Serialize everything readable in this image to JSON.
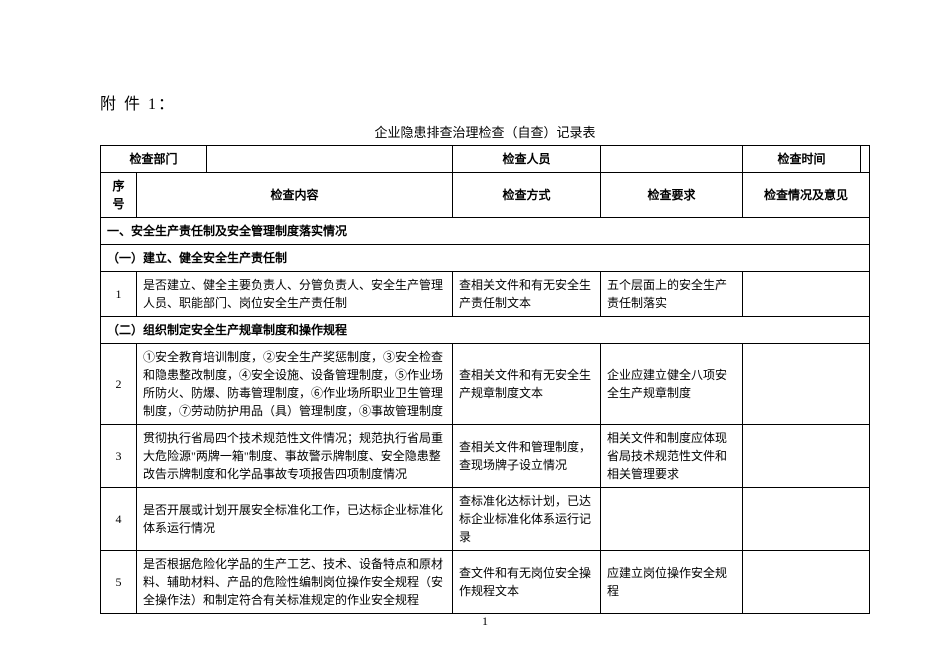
{
  "attachment_label": "附 件 1：",
  "title": "企业隐患排查治理检查（自查）记录表",
  "header_row": {
    "dept_label": "检查部门",
    "dept_value": "",
    "person_label": "检查人员",
    "person_value": "",
    "time_label": "检查时间",
    "time_value": ""
  },
  "columns": {
    "seq": "序号",
    "content": "检查内容",
    "method": "检查方式",
    "requirement": "检查要求",
    "opinion": "检查情况及意见"
  },
  "section1": "一、安全生产责任制及安全管理制度落实情况",
  "sub1": "（一）建立、健全安全生产责任制",
  "row1": {
    "seq": "1",
    "content": "是否建立、健全主要负责人、分管负责人、安全生产管理人员、职能部门、岗位安全生产责任制",
    "method": "查相关文件和有无安全生产责任制文本",
    "requirement": "五个层面上的安全生产责任制落实",
    "opinion": ""
  },
  "sub2": "（二）组织制定安全生产规章制度和操作规程",
  "row2": {
    "seq": "2",
    "content": "①安全教育培训制度，②安全生产奖惩制度，③安全检查和隐患整改制度，④安全设施、设备管理制度，⑤作业场所防火、防爆、防毒管理制度，⑥作业场所职业卫生管理制度，⑦劳动防护用品（具）管理制度，⑧事故管理制度",
    "method": "查相关文件和有无安全生产规章制度文本",
    "requirement": "企业应建立健全八项安全生产规章制度",
    "opinion": ""
  },
  "row3": {
    "seq": "3",
    "content": "贯彻执行省局四个技术规范性文件情况；规范执行省局重大危险源\"两牌一箱\"制度、事故警示牌制度、安全隐患整改告示牌制度和化学品事故专项报告四项制度情况",
    "method": "查相关文件和管理制度，查现场牌子设立情况",
    "requirement": "相关文件和制度应体现省局技术规范性文件和相关管理要求",
    "opinion": ""
  },
  "row4": {
    "seq": "4",
    "content": "是否开展或计划开展安全标准化工作，已达标企业标准化体系运行情况",
    "method": "查标准化达标计划，已达标企业标准化体系运行记录",
    "requirement": "",
    "opinion": ""
  },
  "row5": {
    "seq": "5",
    "content": "是否根据危险化学品的生产工艺、技术、设备特点和原材料、辅助材料、产品的危险性编制岗位操作安全规程（安全操作法）和制定符合有关标准规定的作业安全规程",
    "method": "查文件和有无岗位安全操作规程文本",
    "requirement": "应建立岗位操作安全规程",
    "opinion": ""
  },
  "page_number": "1"
}
